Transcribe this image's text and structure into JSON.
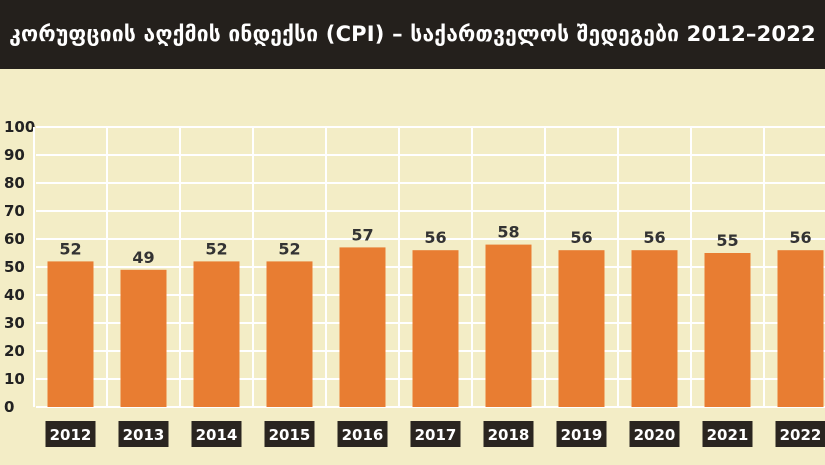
{
  "colors": {
    "background": "#f3edc6",
    "header": "#24201c",
    "bar": "#e87d32",
    "grid": "#ffffff",
    "category_box": "#2a2520",
    "title_text": "#ffffff"
  },
  "chart_data": {
    "type": "bar",
    "title": "კორუფციის აღქმის ინდექსი (CPI) – საქართველოს შედეგები 2012–2022",
    "categories": [
      "2012",
      "2013",
      "2014",
      "2015",
      "2016",
      "2017",
      "2018",
      "2019",
      "2020",
      "2021",
      "2022"
    ],
    "values": [
      52,
      49,
      52,
      52,
      57,
      56,
      58,
      56,
      56,
      55,
      56
    ],
    "ylim": [
      0,
      100
    ],
    "yticks": [
      0,
      10,
      20,
      30,
      40,
      50,
      60,
      70,
      80,
      90,
      100
    ],
    "grid": true,
    "data_labels": true
  }
}
